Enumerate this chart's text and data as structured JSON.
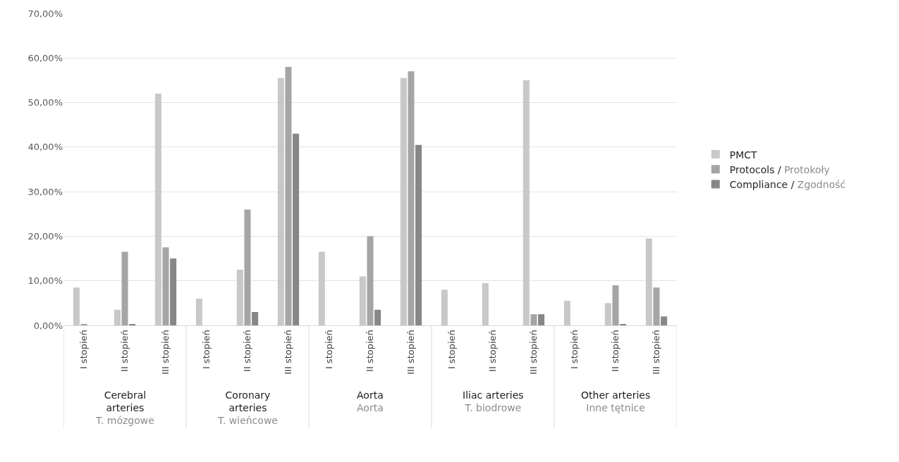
{
  "chart_data": {
    "type": "bar",
    "categories": [
      "I stopień",
      "II stopień",
      "III stopień",
      "I stopień",
      "II stopień",
      "III stopień",
      "I stopień",
      "II stopień",
      "III stopień",
      "I stopień",
      "II stopień",
      "III stopień",
      "I stopień",
      "II stopień",
      "III stopień"
    ],
    "series": [
      {
        "name": "PMCT",
        "color": "#c8c8c8",
        "values": [
          8.5,
          3.5,
          52,
          6,
          12.5,
          55.5,
          16.5,
          11,
          55.5,
          8,
          9.5,
          55,
          5.5,
          5,
          19.5
        ]
      },
      {
        "name": "Protocols / Protokoły",
        "color": "#a5a5a5",
        "values": [
          0.3,
          16.5,
          17.5,
          0,
          26,
          58,
          0,
          20,
          57,
          0,
          0,
          2.5,
          0,
          9,
          8.5
        ]
      },
      {
        "name": "Compliance / Zgodność",
        "color": "#878787",
        "values": [
          0,
          0.3,
          15,
          0,
          3,
          43,
          0,
          3.5,
          40.5,
          0,
          0,
          2.5,
          0,
          0.3,
          2
        ]
      }
    ],
    "annotations": [
      "Cerebral\narteries\nT. mózgowe",
      "Coronary\narteries\nT. wieńcowe",
      "Aorta\nAorta",
      "Iliac arteries\nT. biodrowe",
      "Other arteries\nInne tętnice"
    ],
    "ylim": [
      0,
      70
    ],
    "yticks": [
      {
        "value": 0,
        "label": "0,00%"
      },
      {
        "value": 10,
        "label": "10,00%"
      },
      {
        "value": 20,
        "label": "20,00%"
      },
      {
        "value": 30,
        "label": "30,00%"
      },
      {
        "value": 40,
        "label": "40,00%"
      },
      {
        "value": 50,
        "label": "50,00%"
      },
      {
        "value": 60,
        "label": "60,00%"
      },
      {
        "value": 70,
        "label": "70,00%"
      }
    ],
    "grid": "y",
    "legend": "right"
  }
}
